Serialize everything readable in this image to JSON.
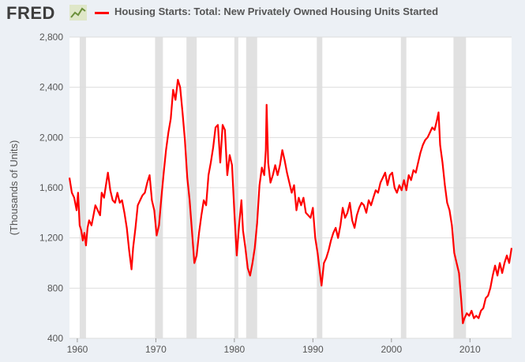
{
  "header": {
    "logo_text": "FRED",
    "logo_icon": "chart-line-icon",
    "legend_label": "Housing Starts: Total: New Privately Owned Housing Units Started",
    "legend_color": "#ff0000"
  },
  "chart_data": {
    "type": "line",
    "title": "Housing Starts: Total: New Privately Owned Housing Units Started",
    "ylabel": "(Thousands of Units)",
    "xlabel": "",
    "ylim": [
      400,
      2800
    ],
    "xlim": [
      1959.0,
      2015.3
    ],
    "yticks": [
      400,
      800,
      1200,
      1600,
      2000,
      2400,
      2800
    ],
    "ytick_labels": [
      "400",
      "800",
      "1,200",
      "1,600",
      "2,000",
      "2,400",
      "2,800"
    ],
    "xticks": [
      1960,
      1970,
      1980,
      1990,
      2000,
      2010
    ],
    "xtick_labels": [
      "1960",
      "1970",
      "1980",
      "1990",
      "2000",
      "2010"
    ],
    "grid": "horizontal",
    "legend": "top",
    "recessions": [
      [
        1960.3,
        1961.1
      ],
      [
        1969.9,
        1970.9
      ],
      [
        1973.9,
        1975.2
      ],
      [
        1980.0,
        1980.5
      ],
      [
        1981.5,
        1982.9
      ],
      [
        1990.5,
        1991.2
      ],
      [
        2001.2,
        2001.9
      ],
      [
        2007.9,
        2009.5
      ]
    ],
    "colors": {
      "line": "#ff0000",
      "recession": "#e1e1e1",
      "plot_bg": "#ffffff",
      "grid": "#dddddd"
    },
    "series": [
      {
        "values": [
          [
            1959.0,
            1680
          ],
          [
            1959.3,
            1560
          ],
          [
            1959.6,
            1520
          ],
          [
            1959.9,
            1420
          ],
          [
            1960.1,
            1560
          ],
          [
            1960.3,
            1300
          ],
          [
            1960.5,
            1260
          ],
          [
            1960.7,
            1180
          ],
          [
            1960.9,
            1240
          ],
          [
            1961.1,
            1140
          ],
          [
            1961.3,
            1280
          ],
          [
            1961.5,
            1340
          ],
          [
            1961.8,
            1300
          ],
          [
            1962.0,
            1360
          ],
          [
            1962.3,
            1460
          ],
          [
            1962.6,
            1420
          ],
          [
            1962.9,
            1380
          ],
          [
            1963.1,
            1560
          ],
          [
            1963.4,
            1520
          ],
          [
            1963.7,
            1640
          ],
          [
            1963.9,
            1720
          ],
          [
            1964.2,
            1580
          ],
          [
            1964.5,
            1500
          ],
          [
            1964.8,
            1480
          ],
          [
            1965.1,
            1560
          ],
          [
            1965.4,
            1480
          ],
          [
            1965.7,
            1500
          ],
          [
            1966.0,
            1400
          ],
          [
            1966.3,
            1280
          ],
          [
            1966.6,
            1100
          ],
          [
            1966.9,
            950
          ],
          [
            1967.1,
            1120
          ],
          [
            1967.4,
            1280
          ],
          [
            1967.7,
            1460
          ],
          [
            1968.0,
            1500
          ],
          [
            1968.3,
            1540
          ],
          [
            1968.6,
            1560
          ],
          [
            1968.9,
            1640
          ],
          [
            1969.2,
            1700
          ],
          [
            1969.5,
            1500
          ],
          [
            1969.8,
            1420
          ],
          [
            1970.1,
            1220
          ],
          [
            1970.4,
            1300
          ],
          [
            1970.7,
            1520
          ],
          [
            1971.0,
            1720
          ],
          [
            1971.3,
            1900
          ],
          [
            1971.6,
            2040
          ],
          [
            1971.9,
            2150
          ],
          [
            1972.2,
            2380
          ],
          [
            1972.5,
            2300
          ],
          [
            1972.8,
            2460
          ],
          [
            1973.1,
            2400
          ],
          [
            1973.4,
            2200
          ],
          [
            1973.7,
            1980
          ],
          [
            1974.0,
            1680
          ],
          [
            1974.3,
            1500
          ],
          [
            1974.6,
            1250
          ],
          [
            1974.9,
            1000
          ],
          [
            1975.2,
            1060
          ],
          [
            1975.5,
            1240
          ],
          [
            1975.8,
            1380
          ],
          [
            1976.1,
            1500
          ],
          [
            1976.4,
            1460
          ],
          [
            1976.7,
            1700
          ],
          [
            1977.0,
            1800
          ],
          [
            1977.3,
            1920
          ],
          [
            1977.6,
            2080
          ],
          [
            1977.9,
            2100
          ],
          [
            1978.2,
            1800
          ],
          [
            1978.5,
            2100
          ],
          [
            1978.8,
            2060
          ],
          [
            1979.1,
            1700
          ],
          [
            1979.4,
            1860
          ],
          [
            1979.7,
            1780
          ],
          [
            1980.0,
            1400
          ],
          [
            1980.3,
            1060
          ],
          [
            1980.6,
            1300
          ],
          [
            1980.9,
            1500
          ],
          [
            1981.1,
            1260
          ],
          [
            1981.4,
            1120
          ],
          [
            1981.7,
            960
          ],
          [
            1982.0,
            900
          ],
          [
            1982.3,
            1000
          ],
          [
            1982.6,
            1120
          ],
          [
            1982.9,
            1320
          ],
          [
            1983.2,
            1620
          ],
          [
            1983.5,
            1760
          ],
          [
            1983.8,
            1700
          ],
          [
            1984.0,
            1900
          ],
          [
            1984.1,
            2260
          ],
          [
            1984.3,
            1800
          ],
          [
            1984.6,
            1640
          ],
          [
            1984.9,
            1700
          ],
          [
            1985.2,
            1780
          ],
          [
            1985.5,
            1700
          ],
          [
            1985.8,
            1780
          ],
          [
            1986.1,
            1900
          ],
          [
            1986.4,
            1820
          ],
          [
            1986.7,
            1720
          ],
          [
            1987.0,
            1640
          ],
          [
            1987.3,
            1560
          ],
          [
            1987.6,
            1620
          ],
          [
            1987.9,
            1420
          ],
          [
            1988.2,
            1520
          ],
          [
            1988.5,
            1460
          ],
          [
            1988.8,
            1520
          ],
          [
            1989.1,
            1400
          ],
          [
            1989.4,
            1380
          ],
          [
            1989.7,
            1360
          ],
          [
            1990.0,
            1440
          ],
          [
            1990.3,
            1200
          ],
          [
            1990.6,
            1080
          ],
          [
            1990.9,
            920
          ],
          [
            1991.1,
            820
          ],
          [
            1991.4,
            1000
          ],
          [
            1991.7,
            1040
          ],
          [
            1992.0,
            1100
          ],
          [
            1992.3,
            1180
          ],
          [
            1992.6,
            1240
          ],
          [
            1992.9,
            1280
          ],
          [
            1993.2,
            1200
          ],
          [
            1993.5,
            1300
          ],
          [
            1993.8,
            1440
          ],
          [
            1994.1,
            1360
          ],
          [
            1994.4,
            1400
          ],
          [
            1994.7,
            1480
          ],
          [
            1995.0,
            1340
          ],
          [
            1995.3,
            1280
          ],
          [
            1995.6,
            1380
          ],
          [
            1995.9,
            1440
          ],
          [
            1996.2,
            1480
          ],
          [
            1996.5,
            1460
          ],
          [
            1996.8,
            1400
          ],
          [
            1997.1,
            1500
          ],
          [
            1997.4,
            1460
          ],
          [
            1997.7,
            1520
          ],
          [
            1998.0,
            1580
          ],
          [
            1998.3,
            1560
          ],
          [
            1998.6,
            1640
          ],
          [
            1998.9,
            1680
          ],
          [
            1999.2,
            1720
          ],
          [
            1999.5,
            1620
          ],
          [
            1999.8,
            1700
          ],
          [
            2000.1,
            1720
          ],
          [
            2000.4,
            1600
          ],
          [
            2000.7,
            1560
          ],
          [
            2001.0,
            1620
          ],
          [
            2001.3,
            1580
          ],
          [
            2001.6,
            1660
          ],
          [
            2001.9,
            1580
          ],
          [
            2002.2,
            1700
          ],
          [
            2002.5,
            1660
          ],
          [
            2002.8,
            1740
          ],
          [
            2003.1,
            1720
          ],
          [
            2003.4,
            1800
          ],
          [
            2003.7,
            1880
          ],
          [
            2004.0,
            1940
          ],
          [
            2004.3,
            1980
          ],
          [
            2004.6,
            2000
          ],
          [
            2004.9,
            2040
          ],
          [
            2005.2,
            2080
          ],
          [
            2005.5,
            2060
          ],
          [
            2005.8,
            2140
          ],
          [
            2006.0,
            2200
          ],
          [
            2006.2,
            1940
          ],
          [
            2006.5,
            1800
          ],
          [
            2006.8,
            1620
          ],
          [
            2007.1,
            1480
          ],
          [
            2007.4,
            1420
          ],
          [
            2007.7,
            1300
          ],
          [
            2008.0,
            1080
          ],
          [
            2008.3,
            1000
          ],
          [
            2008.6,
            920
          ],
          [
            2008.9,
            700
          ],
          [
            2009.1,
            520
          ],
          [
            2009.3,
            560
          ],
          [
            2009.6,
            600
          ],
          [
            2009.9,
            580
          ],
          [
            2010.2,
            620
          ],
          [
            2010.5,
            560
          ],
          [
            2010.8,
            580
          ],
          [
            2011.1,
            560
          ],
          [
            2011.4,
            620
          ],
          [
            2011.7,
            640
          ],
          [
            2012.0,
            720
          ],
          [
            2012.3,
            740
          ],
          [
            2012.6,
            800
          ],
          [
            2012.9,
            900
          ],
          [
            2013.2,
            980
          ],
          [
            2013.5,
            900
          ],
          [
            2013.8,
            1000
          ],
          [
            2014.1,
            920
          ],
          [
            2014.4,
            1000
          ],
          [
            2014.7,
            1060
          ],
          [
            2015.0,
            1000
          ],
          [
            2015.3,
            1120
          ]
        ]
      }
    ]
  }
}
